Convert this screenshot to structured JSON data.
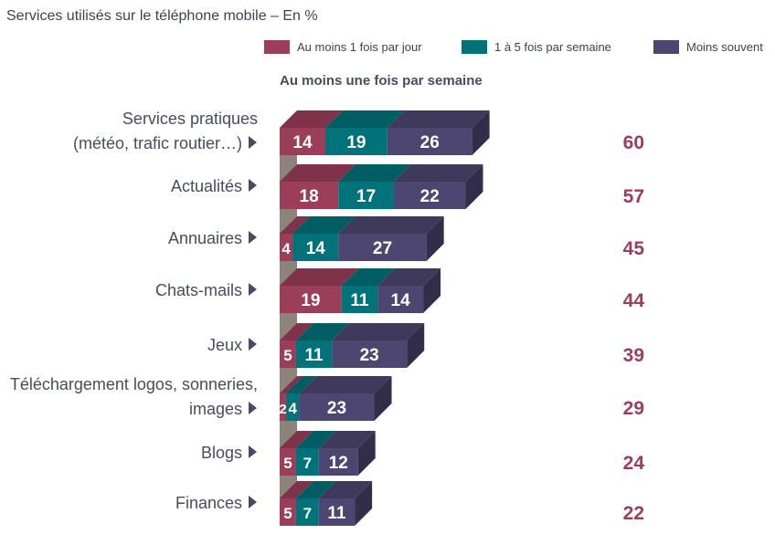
{
  "chart_data": {
    "type": "bar",
    "orientation": "horizontal",
    "stacked": true,
    "title": "Services utilisés sur le téléphone mobile – En %",
    "subtitle": "Au moins une fois par semaine",
    "categories": [
      [
        "Services pratiques",
        "(météo, trafic routier…)"
      ],
      [
        "Actualités"
      ],
      [
        "Annuaires"
      ],
      [
        "Chats-mails"
      ],
      [
        "Jeux"
      ],
      [
        "Téléchargement logos, sonneries,",
        "images"
      ],
      [
        "Blogs"
      ],
      [
        "Finances"
      ]
    ],
    "series": [
      {
        "name": "Au moins 1 fois par jour",
        "color": "#9b3e5a",
        "values": [
          14,
          18,
          4,
          19,
          5,
          2,
          5,
          5
        ]
      },
      {
        "name": "1 à 5 fois par semaine",
        "color": "#00727a",
        "values": [
          19,
          17,
          14,
          11,
          11,
          4,
          7,
          7
        ]
      },
      {
        "name": "Moins souvent",
        "color": "#4d4670",
        "values": [
          26,
          22,
          27,
          14,
          23,
          23,
          12,
          11
        ]
      }
    ],
    "totals": [
      60,
      57,
      45,
      44,
      39,
      29,
      24,
      22
    ],
    "legend_position": "top-right"
  }
}
